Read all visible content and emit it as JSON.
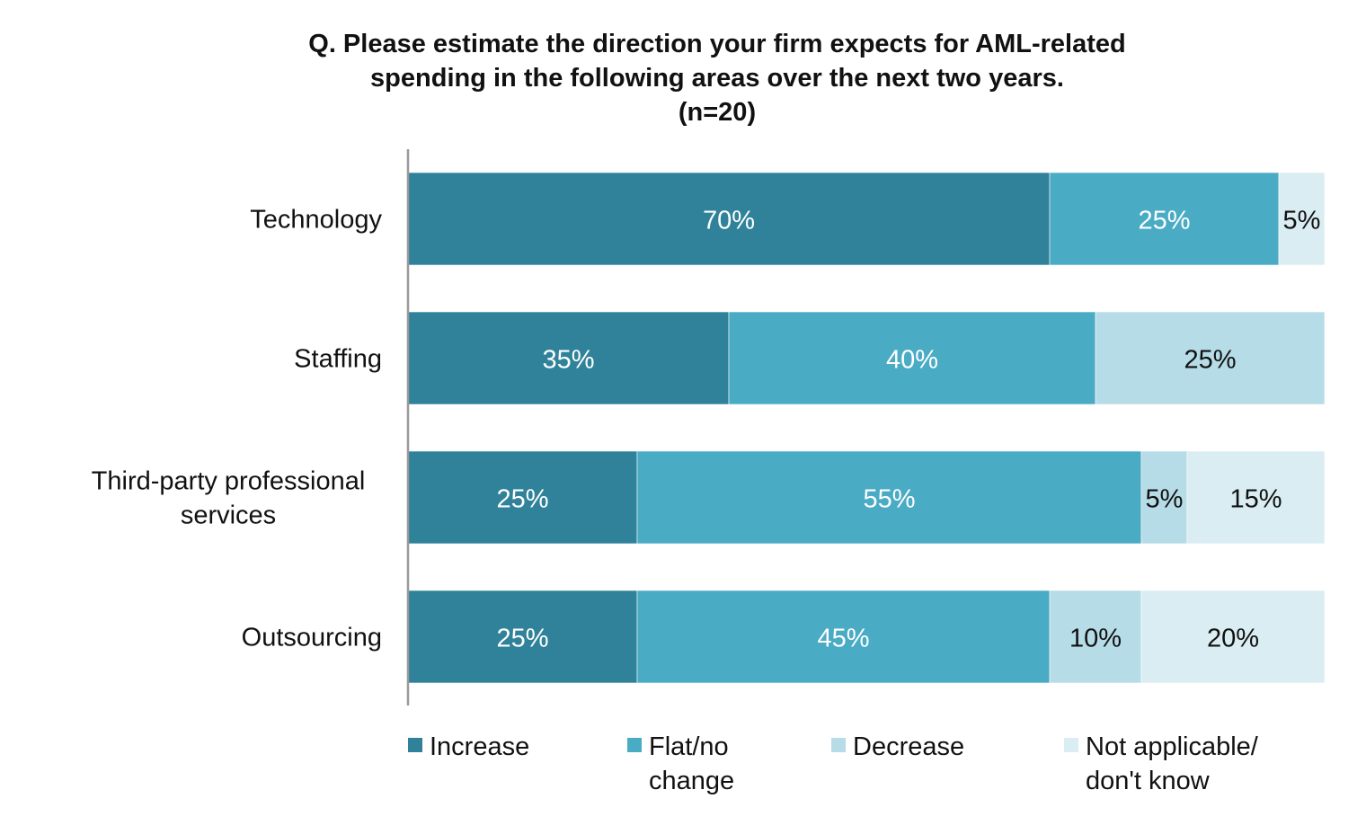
{
  "chart_data": {
    "type": "bar",
    "orientation": "horizontal",
    "stacked": true,
    "title": [
      "Q. Please estimate the direction your firm expects for AML-related",
      "spending in the following areas over the next two years."
    ],
    "subtitle": "(n=20)",
    "xlabel": "",
    "ylabel": "",
    "xlim": [
      0,
      100
    ],
    "grid": false,
    "legend_position": "bottom",
    "categories": [
      [
        "Technology"
      ],
      [
        "Staffing"
      ],
      [
        "Third-party professional",
        "services"
      ],
      [
        "Outsourcing"
      ]
    ],
    "series": [
      {
        "name": [
          "Increase"
        ],
        "color": "#2F8299",
        "label_color": "#ffffff",
        "values": [
          70,
          35,
          25,
          25
        ],
        "labels": [
          "70%",
          "35%",
          "25%",
          "25%"
        ]
      },
      {
        "name": [
          "Flat/no",
          "change"
        ],
        "color": "#4AABC5",
        "label_color": "#ffffff",
        "values": [
          25,
          40,
          55,
          45
        ],
        "labels": [
          "25%",
          "40%",
          "55%",
          "45%"
        ]
      },
      {
        "name": [
          "Decrease"
        ],
        "color": "#B6DCE7",
        "label_color": "#111111",
        "values": [
          0,
          25,
          5,
          10
        ],
        "labels": [
          "",
          "25%",
          "5%",
          "10%"
        ]
      },
      {
        "name": [
          "Not applicable/",
          "don't know"
        ],
        "color": "#DAEDF3",
        "label_color": "#111111",
        "values": [
          5,
          0,
          15,
          20
        ],
        "labels": [
          "5%",
          "",
          "15%",
          "20%"
        ]
      }
    ]
  }
}
